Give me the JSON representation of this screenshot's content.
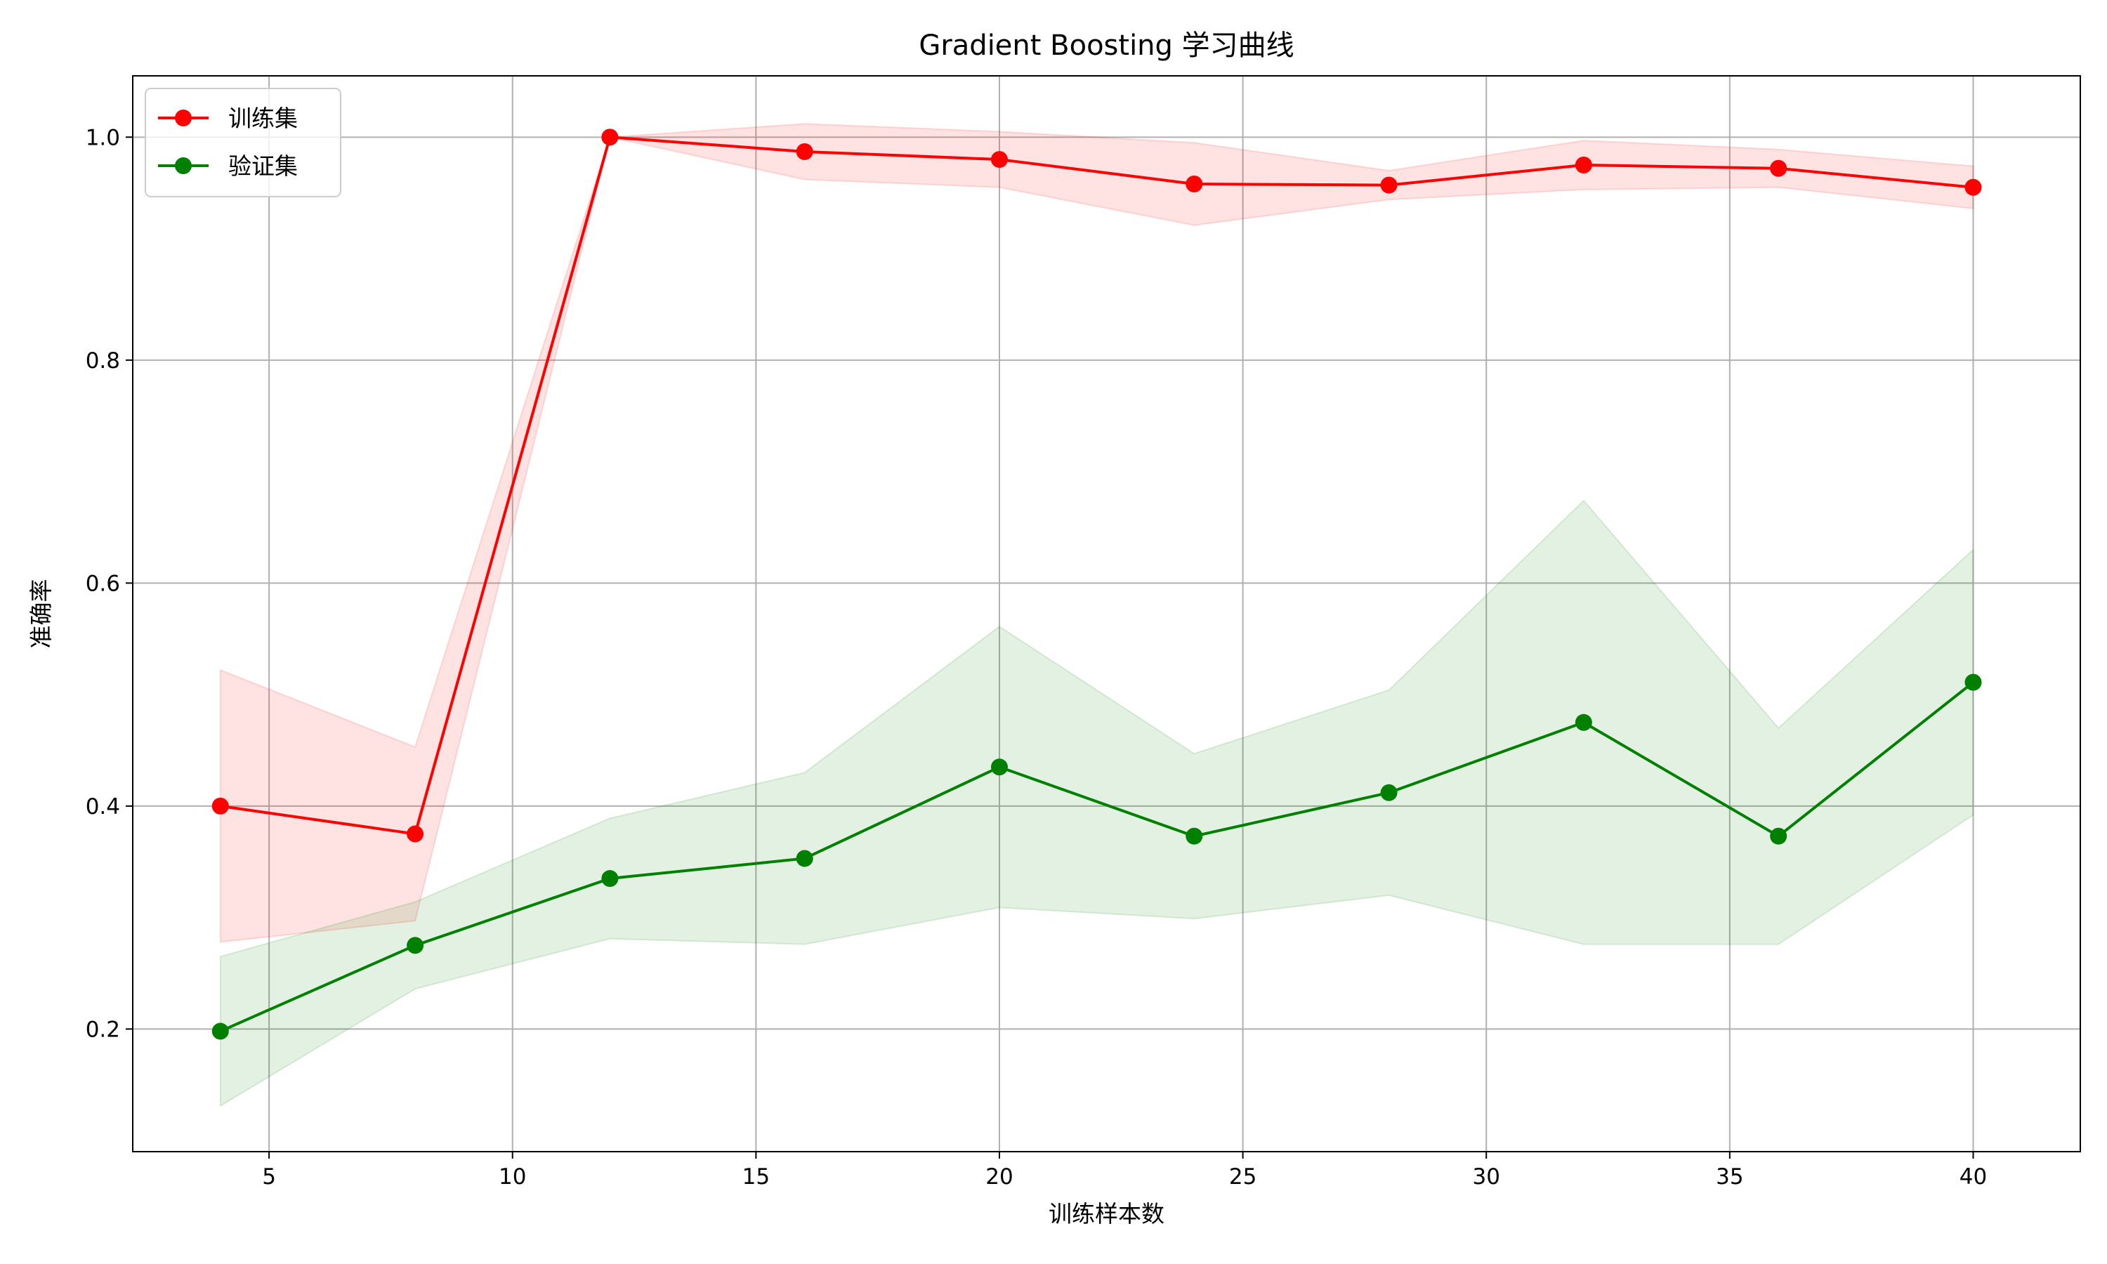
{
  "chart_data": {
    "type": "line",
    "title": "Gradient Boosting 学习曲线",
    "xlabel": "训练样本数",
    "ylabel": "准确率",
    "xlim": [
      2.2,
      42.2
    ],
    "ylim": [
      0.09,
      1.055
    ],
    "xticks": [
      5,
      10,
      15,
      20,
      25,
      30,
      35,
      40
    ],
    "yticks": [
      0.2,
      0.4,
      0.6,
      0.8,
      1.0
    ],
    "grid": true,
    "legend_position": "top-left",
    "x": [
      4,
      8,
      12,
      16,
      20,
      24,
      28,
      32,
      36,
      40
    ],
    "series": [
      {
        "name": "训练集",
        "color": "#ff0000",
        "fill_color": "#ff0000",
        "values": [
          0.4,
          0.375,
          1.0,
          0.987,
          0.98,
          0.958,
          0.957,
          0.975,
          0.972,
          0.955
        ],
        "band_lower": [
          0.278,
          0.297,
          1.0,
          0.962,
          0.955,
          0.921,
          0.944,
          0.953,
          0.955,
          0.936
        ],
        "band_upper": [
          0.522,
          0.453,
          1.0,
          1.012,
          1.005,
          0.995,
          0.97,
          0.997,
          0.989,
          0.974
        ]
      },
      {
        "name": "验证集",
        "color": "#008000",
        "fill_color": "#008000",
        "values": [
          0.198,
          0.275,
          0.335,
          0.353,
          0.435,
          0.373,
          0.412,
          0.475,
          0.373,
          0.511
        ],
        "band_lower": [
          0.131,
          0.236,
          0.281,
          0.276,
          0.309,
          0.299,
          0.32,
          0.276,
          0.276,
          0.392
        ],
        "band_upper": [
          0.265,
          0.314,
          0.389,
          0.43,
          0.561,
          0.447,
          0.504,
          0.674,
          0.47,
          0.63
        ]
      }
    ]
  }
}
